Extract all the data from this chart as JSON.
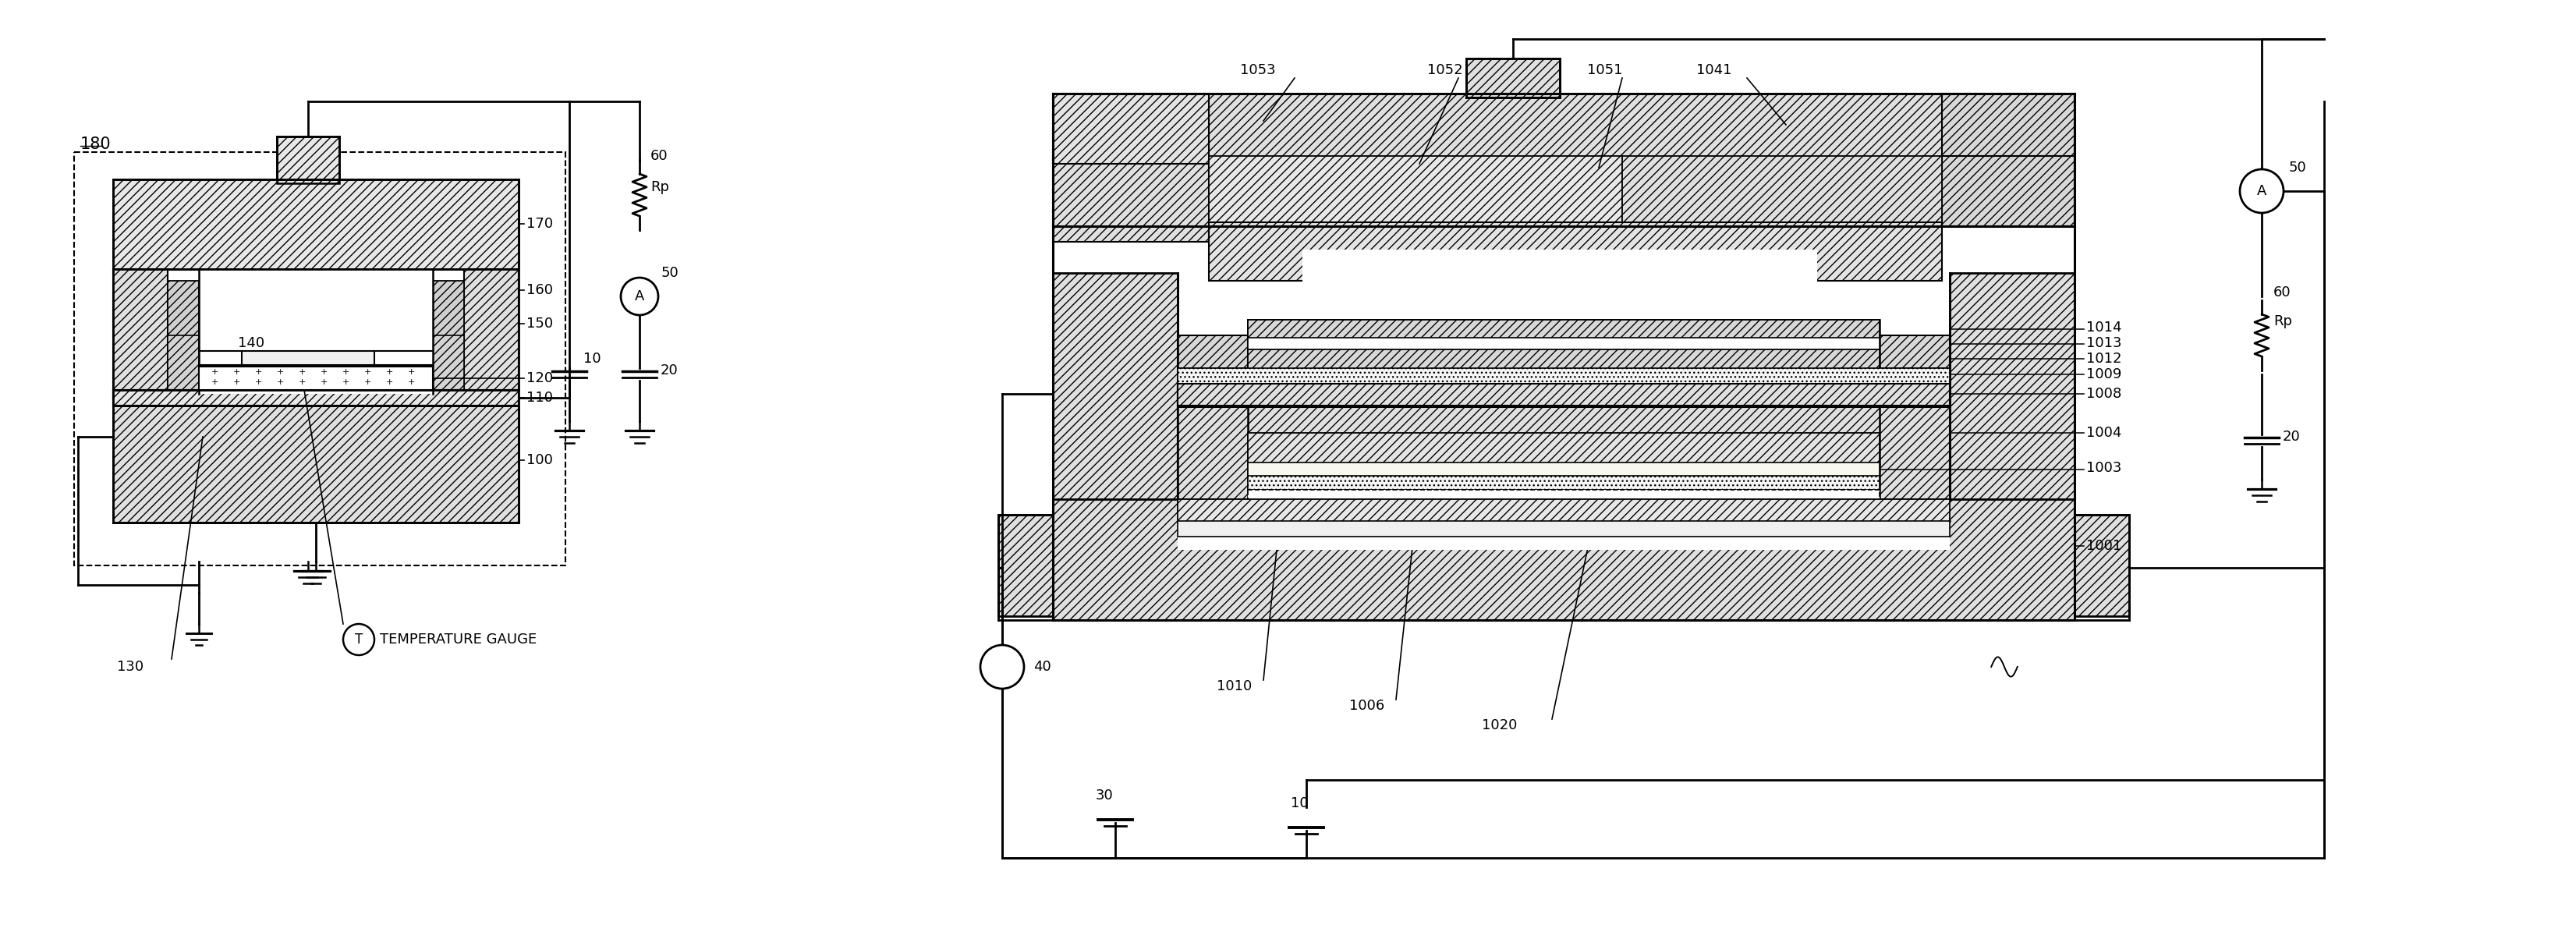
{
  "bg_color": "#ffffff",
  "fig_width": 33.03,
  "fig_height": 11.86,
  "labels": {
    "180": "180",
    "170": "170",
    "160": "160",
    "150": "150",
    "140": "140",
    "120": "120",
    "110": "110",
    "100": "100",
    "130": "130",
    "10": "10",
    "20": "20",
    "50": "50",
    "60": "60",
    "Rp": "Rp",
    "A": "A",
    "TEMPERATURE GAUGE": "TEMPERATURE GAUGE",
    "1053": "1053",
    "1052": "1052",
    "1051": "1051",
    "1041": "1041",
    "1014": "1014",
    "1013": "1013",
    "1012": "1012",
    "1009": "1009",
    "1008": "1008",
    "1004": "1004",
    "1003": "1003",
    "1001": "1001",
    "1010": "1010",
    "1006": "1006",
    "1020": "1020",
    "30": "30",
    "40": "40"
  }
}
